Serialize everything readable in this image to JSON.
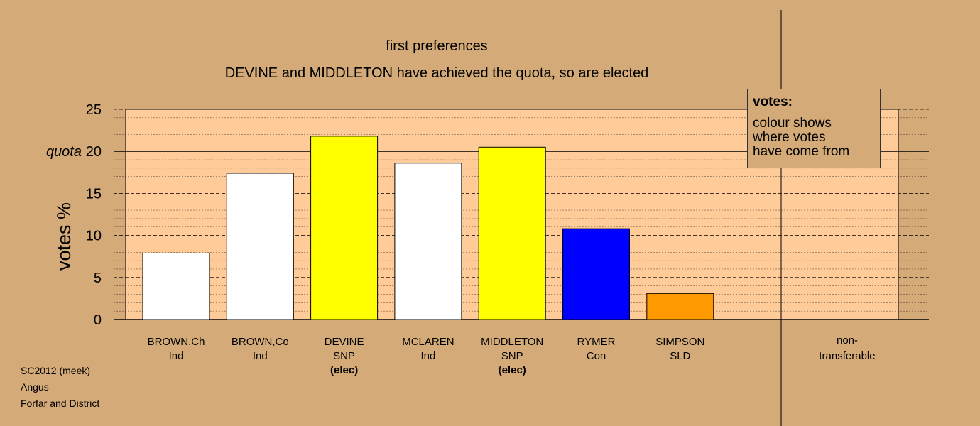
{
  "chart_data": {
    "type": "bar",
    "title": "first preferences",
    "subtitle": "DEVINE and MIDDLETON have achieved the quota, so are elected",
    "ylabel": "votes %",
    "ylim": [
      0,
      25
    ],
    "yticks": [
      0,
      5,
      10,
      15,
      20,
      25
    ],
    "quota": 20,
    "quota_label": "quota",
    "grid": true,
    "categories": [
      {
        "name": "BROWN,Ch",
        "party": "Ind",
        "status": ""
      },
      {
        "name": "BROWN,Co",
        "party": "Ind",
        "status": ""
      },
      {
        "name": "DEVINE",
        "party": "SNP",
        "status": "(elec)"
      },
      {
        "name": "MCLAREN",
        "party": "Ind",
        "status": ""
      },
      {
        "name": "MIDDLETON",
        "party": "SNP",
        "status": "(elec)"
      },
      {
        "name": "RYMER",
        "party": "Con",
        "status": ""
      },
      {
        "name": "SIMPSON",
        "party": "SLD",
        "status": ""
      }
    ],
    "values": [
      7.9,
      17.4,
      21.8,
      18.6,
      20.5,
      10.8,
      3.1
    ],
    "colors": [
      "#ffffff",
      "#ffffff",
      "#ffff00",
      "#ffffff",
      "#ffff00",
      "#0000ff",
      "#ff9900"
    ],
    "nontransferable": {
      "label_line1": "non-",
      "label_line2": "transferable",
      "value": 0
    },
    "legend": {
      "title": "votes:",
      "lines": [
        "colour shows",
        "where votes",
        "have come from"
      ],
      "position": "top-right"
    }
  },
  "footer": [
    "SC2012 (meek)",
    "Angus",
    "Forfar and District"
  ],
  "colors": {
    "background": "#d4aa78",
    "plot_area": "#ffcc99"
  }
}
